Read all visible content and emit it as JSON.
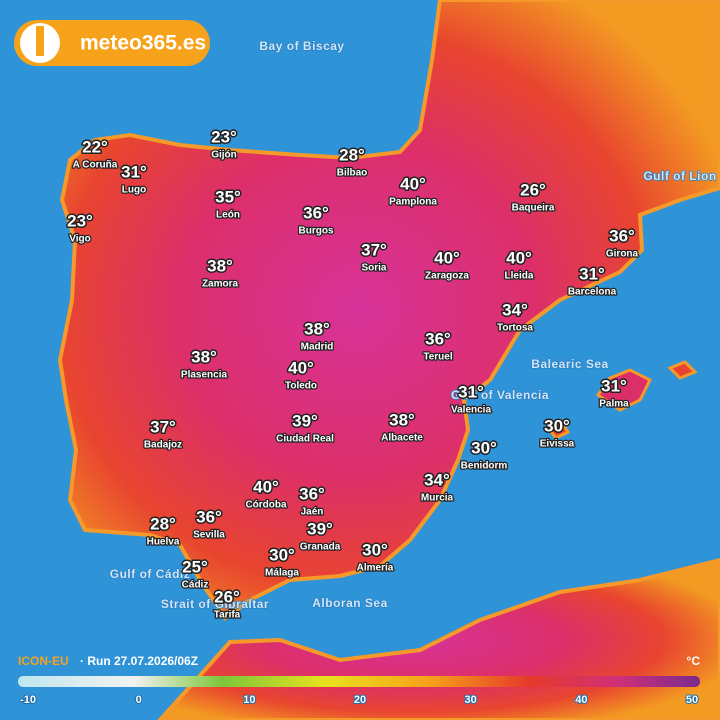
{
  "header": {
    "logo": "meteo365.es"
  },
  "seas": [
    "Bay of Biscay",
    "Gulf of Lion",
    "Balearic Sea",
    "Gulf of Valencia",
    "Gulf of Cádiz",
    "Strait of Gibraltar",
    "Alboran Sea"
  ],
  "cities": [
    {
      "name": "A Coruña",
      "temp": "22°"
    },
    {
      "name": "Gijón",
      "temp": "23°"
    },
    {
      "name": "Lugo",
      "temp": "31°"
    },
    {
      "name": "Bilbao",
      "temp": "28°"
    },
    {
      "name": "León",
      "temp": "35°"
    },
    {
      "name": "Pamplona",
      "temp": "40°"
    },
    {
      "name": "Baqueira",
      "temp": "26°"
    },
    {
      "name": "Vigo",
      "temp": "23°"
    },
    {
      "name": "Burgos",
      "temp": "36°"
    },
    {
      "name": "Girona",
      "temp": "36°"
    },
    {
      "name": "Soria",
      "temp": "37°"
    },
    {
      "name": "Zaragoza",
      "temp": "40°"
    },
    {
      "name": "Lleida",
      "temp": "40°"
    },
    {
      "name": "Zamora",
      "temp": "38°"
    },
    {
      "name": "Barcelona",
      "temp": "31°"
    },
    {
      "name": "Tortosa",
      "temp": "34°"
    },
    {
      "name": "Madrid",
      "temp": "38°"
    },
    {
      "name": "Teruel",
      "temp": "36°"
    },
    {
      "name": "Plasencia",
      "temp": "38°"
    },
    {
      "name": "Toledo",
      "temp": "40°"
    },
    {
      "name": "Valencia",
      "temp": "31°"
    },
    {
      "name": "Palma",
      "temp": "31°"
    },
    {
      "name": "Badajoz",
      "temp": "37°"
    },
    {
      "name": "Ciudad Real",
      "temp": "39°"
    },
    {
      "name": "Albacete",
      "temp": "38°"
    },
    {
      "name": "Eivissa",
      "temp": "30°"
    },
    {
      "name": "Benidorm",
      "temp": "30°"
    },
    {
      "name": "Murcia",
      "temp": "34°"
    },
    {
      "name": "Córdoba",
      "temp": "40°"
    },
    {
      "name": "Jaén",
      "temp": "36°"
    },
    {
      "name": "Sevilla",
      "temp": "36°"
    },
    {
      "name": "Huelva",
      "temp": "28°"
    },
    {
      "name": "Granada",
      "temp": "39°"
    },
    {
      "name": "Cádiz",
      "temp": "25°"
    },
    {
      "name": "Málaga",
      "temp": "30°"
    },
    {
      "name": "Almería",
      "temp": "30°"
    },
    {
      "name": "Tarifa",
      "temp": "26°"
    }
  ],
  "footer": {
    "model": "ICON-EU",
    "run": "· Run 27.07.2026/06Z",
    "unit": "°C"
  },
  "legend": {
    "range": [
      -10,
      50
    ],
    "ticks": [
      -10,
      0,
      10,
      20,
      30,
      40,
      50
    ]
  }
}
